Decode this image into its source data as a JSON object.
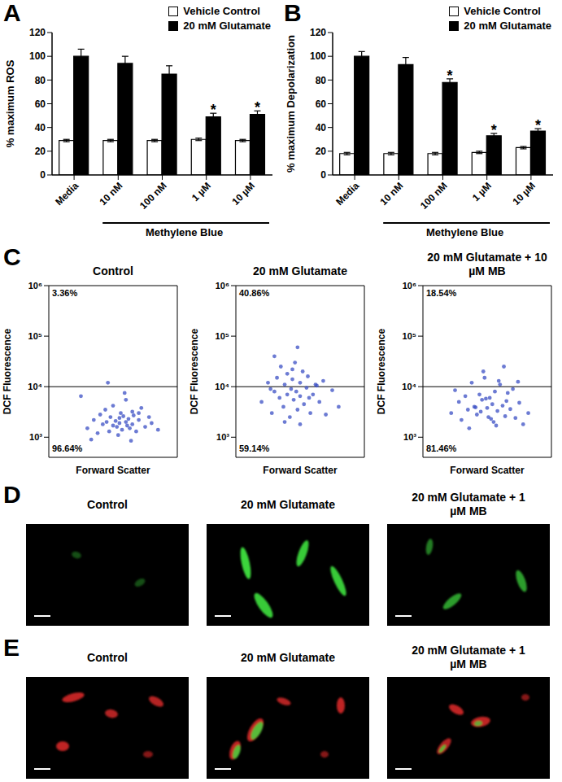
{
  "chart_data": [
    {
      "panel": "A",
      "type": "bar",
      "ylabel": "% maximum ROS",
      "categories": [
        "Media",
        "10 nM",
        "100 nM",
        "1 µM",
        "10 µM"
      ],
      "series": [
        {
          "name": "Vehicle Control",
          "color": "#ffffff",
          "values": [
            29,
            29,
            29,
            30,
            29
          ],
          "errors": [
            1,
            1,
            1,
            1,
            1
          ]
        },
        {
          "name": "20 mM Glutamate",
          "color": "#000000",
          "values": [
            100,
            94,
            85,
            49,
            51
          ],
          "errors": [
            6,
            6,
            7,
            3,
            3
          ]
        }
      ],
      "ylim": [
        0,
        120
      ],
      "yticks": [
        0,
        20,
        40,
        60,
        80,
        100,
        120
      ],
      "legend": "upper right",
      "annotations": [
        {
          "text": "*",
          "series": "20 mM Glutamate",
          "category": "1 µM"
        },
        {
          "text": "*",
          "series": "20 mM Glutamate",
          "category": "10 µM"
        }
      ],
      "group_label": {
        "text": "Methylene Blue",
        "categories": [
          "10 nM",
          "100 nM",
          "1 µM",
          "10 µM"
        ]
      }
    },
    {
      "panel": "B",
      "type": "bar",
      "ylabel": "% maximum Depolarization",
      "categories": [
        "Media",
        "10 nM",
        "100 nM",
        "1 µM",
        "10 µM"
      ],
      "series": [
        {
          "name": "Vehicle Control",
          "color": "#ffffff",
          "values": [
            18,
            18,
            18,
            19,
            23
          ],
          "errors": [
            1,
            1,
            1,
            1,
            1
          ]
        },
        {
          "name": "20 mM Glutamate",
          "color": "#000000",
          "values": [
            100,
            93,
            78,
            33,
            37
          ],
          "errors": [
            4,
            6,
            3,
            2,
            2
          ]
        }
      ],
      "ylim": [
        0,
        120
      ],
      "yticks": [
        0,
        20,
        40,
        60,
        80,
        100,
        120
      ],
      "legend": "upper right",
      "annotations": [
        {
          "text": "*",
          "series": "20 mM Glutamate",
          "category": "100 nM"
        },
        {
          "text": "*",
          "series": "20 mM Glutamate",
          "category": "1 µM"
        },
        {
          "text": "*",
          "series": "20 mM Glutamate",
          "category": "10 µM"
        }
      ],
      "group_label": {
        "text": "Methylene Blue",
        "categories": [
          "10 nM",
          "100 nM",
          "1 µM",
          "10 µM"
        ]
      }
    },
    {
      "panel": "C",
      "type": "scatter",
      "xlabel": "Forward Scatter",
      "ylabel": "DCF Fluorescence",
      "log": "y",
      "xlim": [
        0,
        100
      ],
      "ylim": [
        400,
        1000000
      ],
      "yticks": [
        {
          "value": 1000,
          "label": "10³"
        },
        {
          "value": 10000,
          "label": "10⁴"
        },
        {
          "value": 100000,
          "label": "10⁵"
        },
        {
          "value": 1000000,
          "label": "10⁶"
        }
      ],
      "tick_labels": "y",
      "gate": 10000,
      "subplots": [
        {
          "title": "Control",
          "color": "#3b4fc4",
          "x": [
            30,
            35,
            38,
            40,
            42,
            44,
            45,
            47,
            48,
            50,
            50,
            52,
            53,
            55,
            55,
            56,
            57,
            58,
            60,
            60,
            61,
            62,
            63,
            65,
            65,
            66,
            68,
            70,
            72,
            75,
            78,
            80,
            85,
            25,
            33,
            46,
            54,
            59,
            64,
            70
          ],
          "y": [
            1500,
            2200,
            1200,
            2800,
            1800,
            3500,
            2000,
            1300,
            2500,
            1700,
            4200,
            2100,
            1600,
            2400,
            1900,
            3000,
            1400,
            2600,
            2000,
            5500,
            1700,
            2300,
            1500,
            3200,
            1800,
            2700,
            1300,
            2200,
            3800,
            1600,
            2500,
            1900,
            1400,
            6500,
            900,
            12000,
            1100,
            7500,
            850,
            3000
          ],
          "upper_percent": {
            "value": 3.36,
            "label": "3.36%"
          },
          "lower_percent": {
            "value": 96.64,
            "label": "96.64%"
          }
        },
        {
          "title": "20 mM Glutamate",
          "color": "#3b4fc4",
          "x": [
            20,
            25,
            28,
            30,
            32,
            34,
            35,
            37,
            38,
            40,
            40,
            42,
            43,
            44,
            45,
            46,
            47,
            48,
            50,
            50,
            52,
            53,
            55,
            56,
            58,
            60,
            62,
            65,
            68,
            70,
            75,
            80,
            30,
            38,
            44,
            50,
            57,
            63,
            27,
            48
          ],
          "y": [
            5000,
            12000,
            3000,
            8000,
            15000,
            6000,
            25000,
            4000,
            11000,
            7000,
            18000,
            2500,
            9000,
            14000,
            5500,
            30000,
            8000,
            3500,
            12000,
            6500,
            20000,
            4500,
            9500,
            16000,
            3000,
            7000,
            11000,
            5000,
            13000,
            2800,
            8500,
            4000,
            40000,
            2000,
            22000,
            1800,
            6000,
            10500,
            9000,
            60000
          ],
          "upper_percent": {
            "value": 40.86,
            "label": "40.86%"
          },
          "lower_percent": {
            "value": 59.14,
            "label": "59.14%"
          }
        },
        {
          "title": "20 mM Glutamate + 10 µM MB",
          "color": "#3b4fc4",
          "x": [
            22,
            28,
            30,
            33,
            35,
            38,
            40,
            42,
            44,
            45,
            46,
            48,
            50,
            51,
            52,
            54,
            55,
            56,
            58,
            60,
            62,
            64,
            65,
            68,
            70,
            72,
            75,
            78,
            82,
            36,
            47,
            53,
            59,
            66,
            41,
            57,
            25,
            63,
            49,
            74
          ],
          "y": [
            3000,
            5000,
            2200,
            6500,
            3500,
            12000,
            4000,
            2800,
            7000,
            3200,
            5500,
            15000,
            3800,
            2500,
            6000,
            4500,
            2000,
            8000,
            3300,
            11000,
            4200,
            2600,
            5200,
            3600,
            9000,
            2400,
            4800,
            1800,
            3000,
            1500,
            20000,
            2300,
            13000,
            7500,
            3900,
            1700,
            8500,
            25000,
            5800,
            12500
          ],
          "upper_percent": {
            "value": 18.54,
            "label": "18.54%"
          },
          "lower_percent": {
            "value": 81.46,
            "label": "81.46%"
          }
        }
      ]
    }
  ],
  "micrographs": [
    {
      "panel": "D",
      "titles": [
        "Control",
        "20 mM Glutamate",
        "20 mM Glutamate + 1 µM MB"
      ]
    },
    {
      "panel": "E",
      "titles": [
        "Control",
        "20 mM Glutamate",
        "20 mM Glutamate + 1 µM MB"
      ]
    }
  ]
}
